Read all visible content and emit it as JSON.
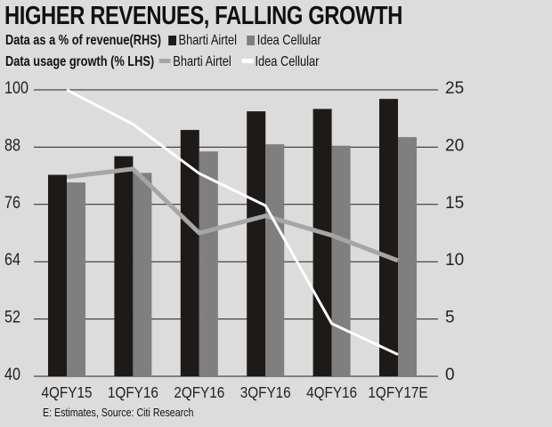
{
  "chart_data": {
    "type": "bar+line",
    "title": "HIGHER REVENUES, FALLING GROWTH",
    "categories": [
      "4QFY15",
      "1QFY16",
      "2QFY16",
      "3QFY16",
      "4QFY16",
      "1QFY17E"
    ],
    "bar_group_label": "Data as a % of revenue(RHS)",
    "line_group_label": "Data usage growth (% LHS)",
    "bar_series": [
      {
        "name": "Bharti Airtel",
        "color": "#1e1a18",
        "values": [
          82.2,
          86.1,
          91.6,
          95.5,
          96.0,
          98.1
        ]
      },
      {
        "name": "Idea Cellular",
        "color": "#7f7f7f",
        "values": [
          80.6,
          82.6,
          87.1,
          88.6,
          88.3,
          90.1
        ]
      }
    ],
    "line_series": [
      {
        "name": "Bharti Airtel",
        "color": "#a6a6a6",
        "values": [
          17.4,
          18.1,
          12.5,
          14.0,
          12.3,
          10.1
        ]
      },
      {
        "name": "Idea Cellular",
        "color": "#ffffff",
        "values": [
          25.0,
          22.0,
          17.7,
          14.9,
          4.6,
          1.9
        ]
      }
    ],
    "left_axis": {
      "ylim": [
        40,
        100
      ],
      "ticks": [
        "100",
        "88",
        "76",
        "64",
        "52",
        "40"
      ]
    },
    "right_axis": {
      "ylim": [
        0,
        25
      ],
      "ticks": [
        "25",
        "20",
        "15",
        "10",
        "5",
        "0"
      ]
    },
    "grid": true,
    "legend_placement": "top-left",
    "source": "E: Estimates, Source: Citi Research"
  }
}
